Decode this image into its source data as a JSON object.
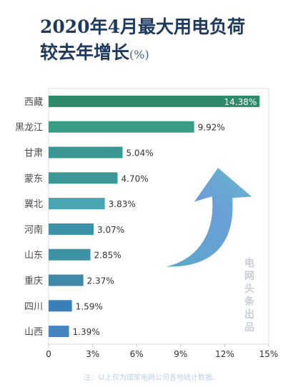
{
  "title": {
    "line1": "2020年4月最大用电负荷",
    "line2": "较去年增长",
    "unit": "(%)"
  },
  "watermark": "电网头条出品",
  "footnote": "注：以上仅为国家电网公司各地统计数据。",
  "chart_data": {
    "type": "bar",
    "orientation": "horizontal",
    "categories": [
      "西藏",
      "黑龙江",
      "甘肃",
      "蒙东",
      "冀北",
      "河南",
      "山东",
      "重庆",
      "四川",
      "山西"
    ],
    "values": [
      14.38,
      9.92,
      5.04,
      4.7,
      3.83,
      3.07,
      2.85,
      2.37,
      1.59,
      1.39
    ],
    "value_labels": [
      "14.38%",
      "9.92%",
      "5.04%",
      "4.70%",
      "3.83%",
      "3.07%",
      "2.85%",
      "2.37%",
      "1.59%",
      "1.39%"
    ],
    "bar_colors": [
      "#2e8b6a",
      "#3a9e86",
      "#3a9792",
      "#3d9898",
      "#4aa6b3",
      "#3e92a8",
      "#3d92a6",
      "#3e8aa8",
      "#3a7fba",
      "#4485c2"
    ],
    "xlim": [
      0,
      15
    ],
    "xticks": [
      0,
      3,
      6,
      9,
      12,
      15
    ],
    "xtick_labels": [
      "0",
      "3%",
      "6%",
      "9%",
      "12%",
      "15%"
    ],
    "xlabel": "",
    "ylabel": "",
    "grid": false,
    "decoration": "curved-up-arrow"
  }
}
